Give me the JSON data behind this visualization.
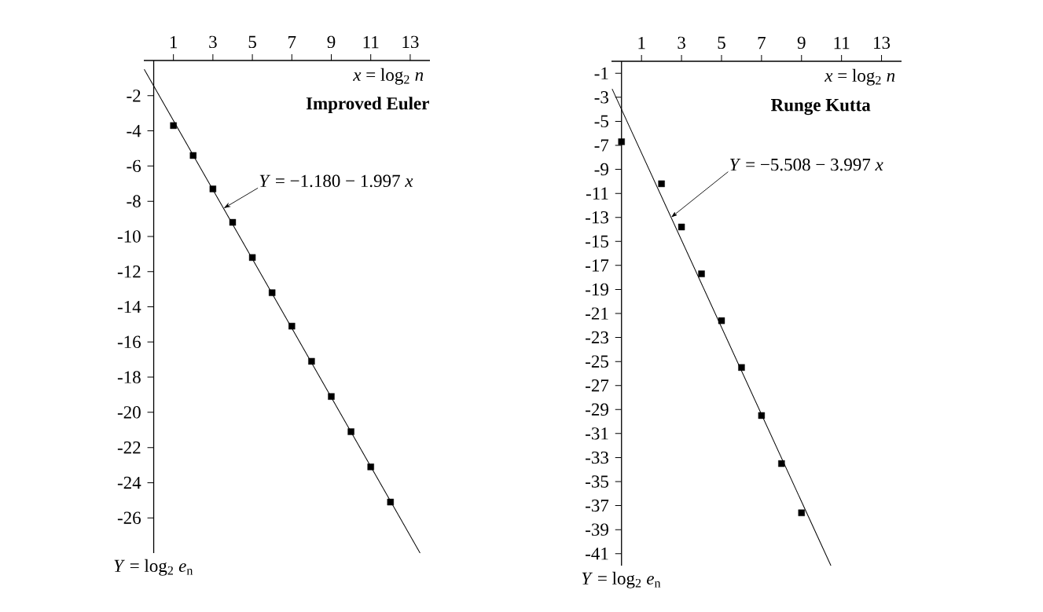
{
  "chart_data": [
    {
      "type": "scatter",
      "title": "Improved Euler",
      "xlabel": "*x* = log$_{2}$ *n*",
      "ylabel": "*Y* = log$_{2}$ *e*$_{n}$",
      "xlim": [
        -0.5,
        14
      ],
      "ylim": [
        -28,
        0
      ],
      "xticks": [
        1,
        3,
        5,
        7,
        9,
        11,
        13
      ],
      "yticks": [
        -2,
        -4,
        -6,
        -8,
        -10,
        -12,
        -14,
        -16,
        -18,
        -20,
        -22,
        -24,
        -26
      ],
      "annotations": [
        {
          "text": "*Y* = −1.180 − 1.997 *x*",
          "x": 3.55,
          "y": -8.4
        }
      ],
      "series": [
        {
          "type": "scatter",
          "marker": "square",
          "color": "#000000",
          "x": [
            1,
            2,
            3,
            4,
            5,
            6,
            7,
            8,
            9,
            10,
            11,
            12
          ],
          "values": [
            -3.7,
            -5.4,
            -7.3,
            -9.2,
            -11.2,
            -13.2,
            -15.1,
            -17.1,
            -19.1,
            -21.1,
            -23.1,
            -25.1
          ]
        },
        {
          "type": "line",
          "marker": "none",
          "color": "#000000",
          "x": [
            -0.48,
            13.5
          ],
          "values": [
            -0.5,
            -28
          ]
        }
      ]
    },
    {
      "type": "scatter",
      "title": "Runge Kutta",
      "xlabel": "*x* = log$_{2}$ *n*",
      "ylabel": "*Y* = log$_{2}$ *e*$_{n}$",
      "xlim": [
        -0.5,
        14
      ],
      "ylim": [
        -42,
        0
      ],
      "xticks": [
        1,
        3,
        5,
        7,
        9,
        11,
        13
      ],
      "yticks": [
        -1,
        -3,
        -5,
        -7,
        -9,
        -11,
        -13,
        -15,
        -17,
        -19,
        -21,
        -23,
        -25,
        -27,
        -29,
        -31,
        -33,
        -35,
        -37,
        -39,
        -41
      ],
      "annotations": [
        {
          "text": "*Y* = −5.508 − 3.997 *x*",
          "x": 2.48,
          "y": -13
        }
      ],
      "series": [
        {
          "type": "scatter",
          "marker": "square",
          "color": "#000000",
          "x": [
            0,
            2,
            3,
            4,
            5,
            6,
            7,
            8,
            9
          ],
          "values": [
            -6.7,
            -10.2,
            -13.8,
            -17.7,
            -21.6,
            -25.5,
            -29.5,
            -33.5,
            -37.6
          ]
        },
        {
          "type": "line",
          "marker": "none",
          "color": "#000000",
          "x": [
            -0.47,
            10.47
          ],
          "values": [
            -2.3,
            -42
          ]
        }
      ]
    }
  ]
}
